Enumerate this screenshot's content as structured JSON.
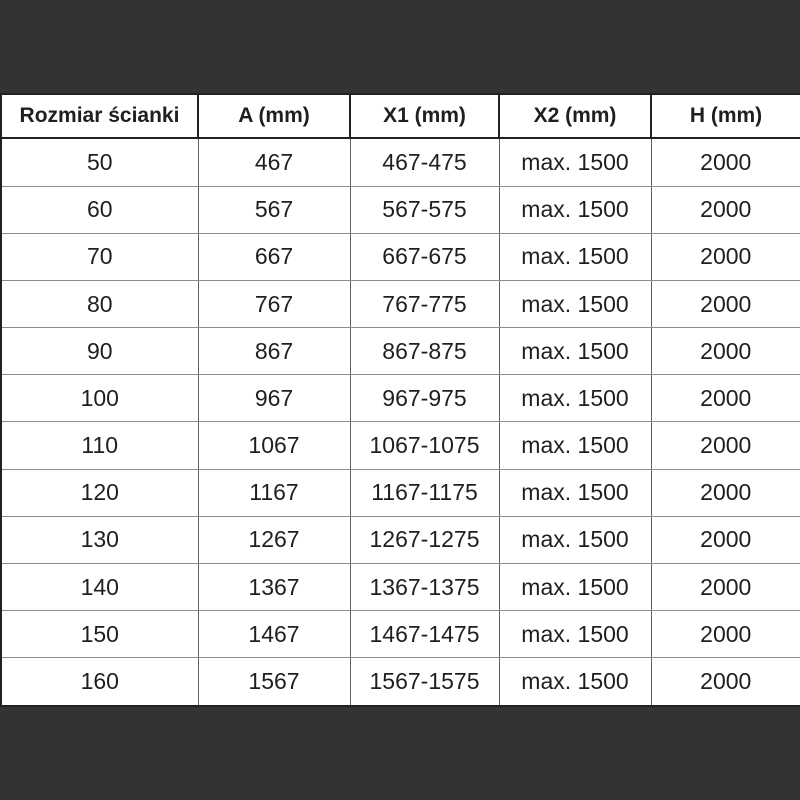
{
  "colors": {
    "background": "#333333",
    "cell_bg": "#ffffff",
    "text": "#1f1f1f",
    "grid_h": "#8c8c8c",
    "grid_v": "#616161",
    "header_border": "#212121"
  },
  "table": {
    "columns": [
      {
        "key": "rozmiar",
        "label": "Rozmiar ścianki"
      },
      {
        "key": "a",
        "label": "A (mm)"
      },
      {
        "key": "x1",
        "label": "X1 (mm)"
      },
      {
        "key": "x2",
        "label": "X2 (mm)"
      },
      {
        "key": "h",
        "label": "H (mm)"
      }
    ],
    "rows": [
      [
        "50",
        "467",
        "467-475",
        "max. 1500",
        "2000"
      ],
      [
        "60",
        "567",
        "567-575",
        "max. 1500",
        "2000"
      ],
      [
        "70",
        "667",
        "667-675",
        "max. 1500",
        "2000"
      ],
      [
        "80",
        "767",
        "767-775",
        "max. 1500",
        "2000"
      ],
      [
        "90",
        "867",
        "867-875",
        "max. 1500",
        "2000"
      ],
      [
        "100",
        "967",
        "967-975",
        "max. 1500",
        "2000"
      ],
      [
        "110",
        "1067",
        "1067-1075",
        "max. 1500",
        "2000"
      ],
      [
        "120",
        "1167",
        "1167-1175",
        "max. 1500",
        "2000"
      ],
      [
        "130",
        "1267",
        "1267-1275",
        "max. 1500",
        "2000"
      ],
      [
        "140",
        "1367",
        "1367-1375",
        "max. 1500",
        "2000"
      ],
      [
        "150",
        "1467",
        "1467-1475",
        "max. 1500",
        "2000"
      ],
      [
        "160",
        "1567",
        "1567-1575",
        "max. 1500",
        "2000"
      ]
    ]
  }
}
